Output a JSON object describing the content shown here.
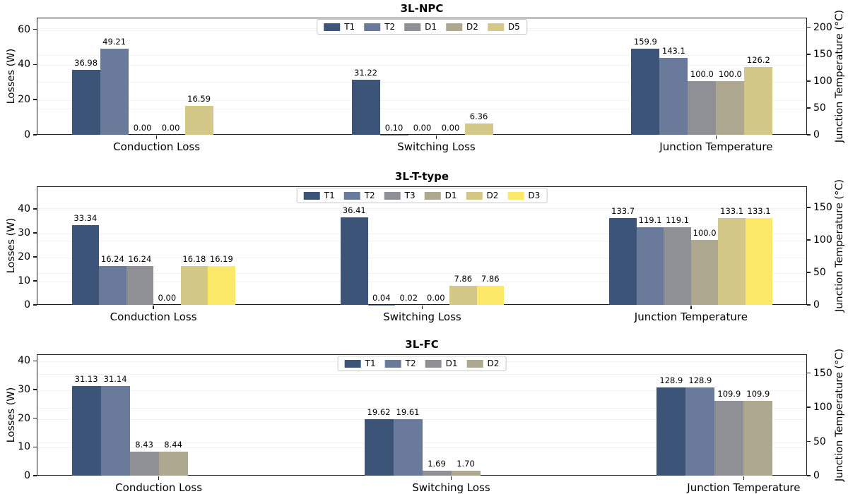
{
  "figure": {
    "background": "#ffffff",
    "palette": {
      "navy": "#3c5478",
      "slate": "#6a7a9b",
      "gray": "#8f9096",
      "tan": "#aea890",
      "khaki": "#d3c887",
      "yellow": "#fde968"
    }
  },
  "chart_data": [
    {
      "type": "bar",
      "title": "3L-NPC",
      "ylabel_left": "Losses (W)",
      "ylabel_right": "Junction Temperature (°C)",
      "categories": [
        "Conduction Loss",
        "Switching Loss",
        "Junction Temperature"
      ],
      "category_axis": [
        "left",
        "left",
        "right"
      ],
      "legend_position": "upper center",
      "grid": true,
      "series": [
        {
          "name": "T1",
          "color": "#3c5478",
          "values": [
            36.98,
            31.22,
            159.9
          ],
          "labels": [
            "36.98",
            "31.22",
            "159.9"
          ]
        },
        {
          "name": "T2",
          "color": "#6a7a9b",
          "values": [
            49.21,
            0.1,
            143.1
          ],
          "labels": [
            "49.21",
            "0.10",
            "143.1"
          ]
        },
        {
          "name": "D1",
          "color": "#8f9096",
          "values": [
            0.0,
            0.0,
            100.0
          ],
          "labels": [
            "0.00",
            "0.00",
            "100.0"
          ]
        },
        {
          "name": "D2",
          "color": "#aea890",
          "values": [
            0.0,
            0.0,
            100.0
          ],
          "labels": [
            "0.00",
            "0.00",
            "100.0"
          ]
        },
        {
          "name": "D5",
          "color": "#d3c887",
          "values": [
            16.59,
            6.36,
            126.2
          ],
          "labels": [
            "16.59",
            "6.36",
            "126.2"
          ]
        }
      ],
      "axes": {
        "left_ticks": [
          0,
          20,
          40,
          60
        ],
        "left_max": 66.7,
        "right_ticks": [
          0,
          50,
          100,
          150,
          200
        ],
        "right_max": 218
      }
    },
    {
      "type": "bar",
      "title": "3L-T-type",
      "ylabel_left": "Losses (W)",
      "ylabel_right": "Junction Temperature (°C)",
      "categories": [
        "Conduction Loss",
        "Switching Loss",
        "Junction Temperature"
      ],
      "category_axis": [
        "left",
        "left",
        "right"
      ],
      "legend_position": "upper center",
      "grid": true,
      "series": [
        {
          "name": "T1",
          "color": "#3c5478",
          "values": [
            33.34,
            36.41,
            133.7
          ],
          "labels": [
            "33.34",
            "36.41",
            "133.7"
          ]
        },
        {
          "name": "T2",
          "color": "#6a7a9b",
          "values": [
            16.24,
            0.04,
            119.1
          ],
          "labels": [
            "16.24",
            "0.04",
            "119.1"
          ]
        },
        {
          "name": "T3",
          "color": "#8f9096",
          "values": [
            16.24,
            0.02,
            119.1
          ],
          "labels": [
            "16.24",
            "0.02",
            "119.1"
          ]
        },
        {
          "name": "D1",
          "color": "#aea890",
          "values": [
            0.0,
            0.0,
            100.0
          ],
          "labels": [
            "0.00",
            "0.00",
            "100.0"
          ]
        },
        {
          "name": "D2",
          "color": "#d3c887",
          "values": [
            16.18,
            7.86,
            133.1
          ],
          "labels": [
            "16.18",
            "7.86",
            "133.1"
          ]
        },
        {
          "name": "D3",
          "color": "#fde968",
          "values": [
            16.19,
            7.86,
            133.1
          ],
          "labels": [
            "16.19",
            "7.86",
            "133.1"
          ]
        }
      ],
      "axes": {
        "left_ticks": [
          0,
          10,
          20,
          30,
          40
        ],
        "left_max": 49.4,
        "right_ticks": [
          0,
          50,
          100,
          150
        ],
        "right_max": 182.3
      }
    },
    {
      "type": "bar",
      "title": "3L-FC",
      "ylabel_left": "Losses (W)",
      "ylabel_right": "Junction Temperature (°C)",
      "categories": [
        "Conduction Loss",
        "Switching Loss",
        "Junction Temperature"
      ],
      "category_axis": [
        "left",
        "left",
        "right"
      ],
      "legend_position": "upper center",
      "grid": true,
      "series": [
        {
          "name": "T1",
          "color": "#3c5478",
          "values": [
            31.13,
            19.62,
            128.9
          ],
          "labels": [
            "31.13",
            "19.62",
            "128.9"
          ]
        },
        {
          "name": "T2",
          "color": "#6a7a9b",
          "values": [
            31.14,
            19.61,
            128.9
          ],
          "labels": [
            "31.14",
            "19.61",
            "128.9"
          ]
        },
        {
          "name": "D1",
          "color": "#8f9096",
          "values": [
            8.43,
            1.69,
            109.9
          ],
          "labels": [
            "8.43",
            "1.69",
            "109.9"
          ]
        },
        {
          "name": "D2",
          "color": "#aea890",
          "values": [
            8.44,
            1.7,
            109.9
          ],
          "labels": [
            "8.44",
            "1.70",
            "109.9"
          ]
        }
      ],
      "axes": {
        "left_ticks": [
          0,
          10,
          20,
          30,
          40
        ],
        "left_max": 42.3,
        "right_ticks": [
          0,
          50,
          100,
          150
        ],
        "right_max": 177.5
      }
    }
  ]
}
